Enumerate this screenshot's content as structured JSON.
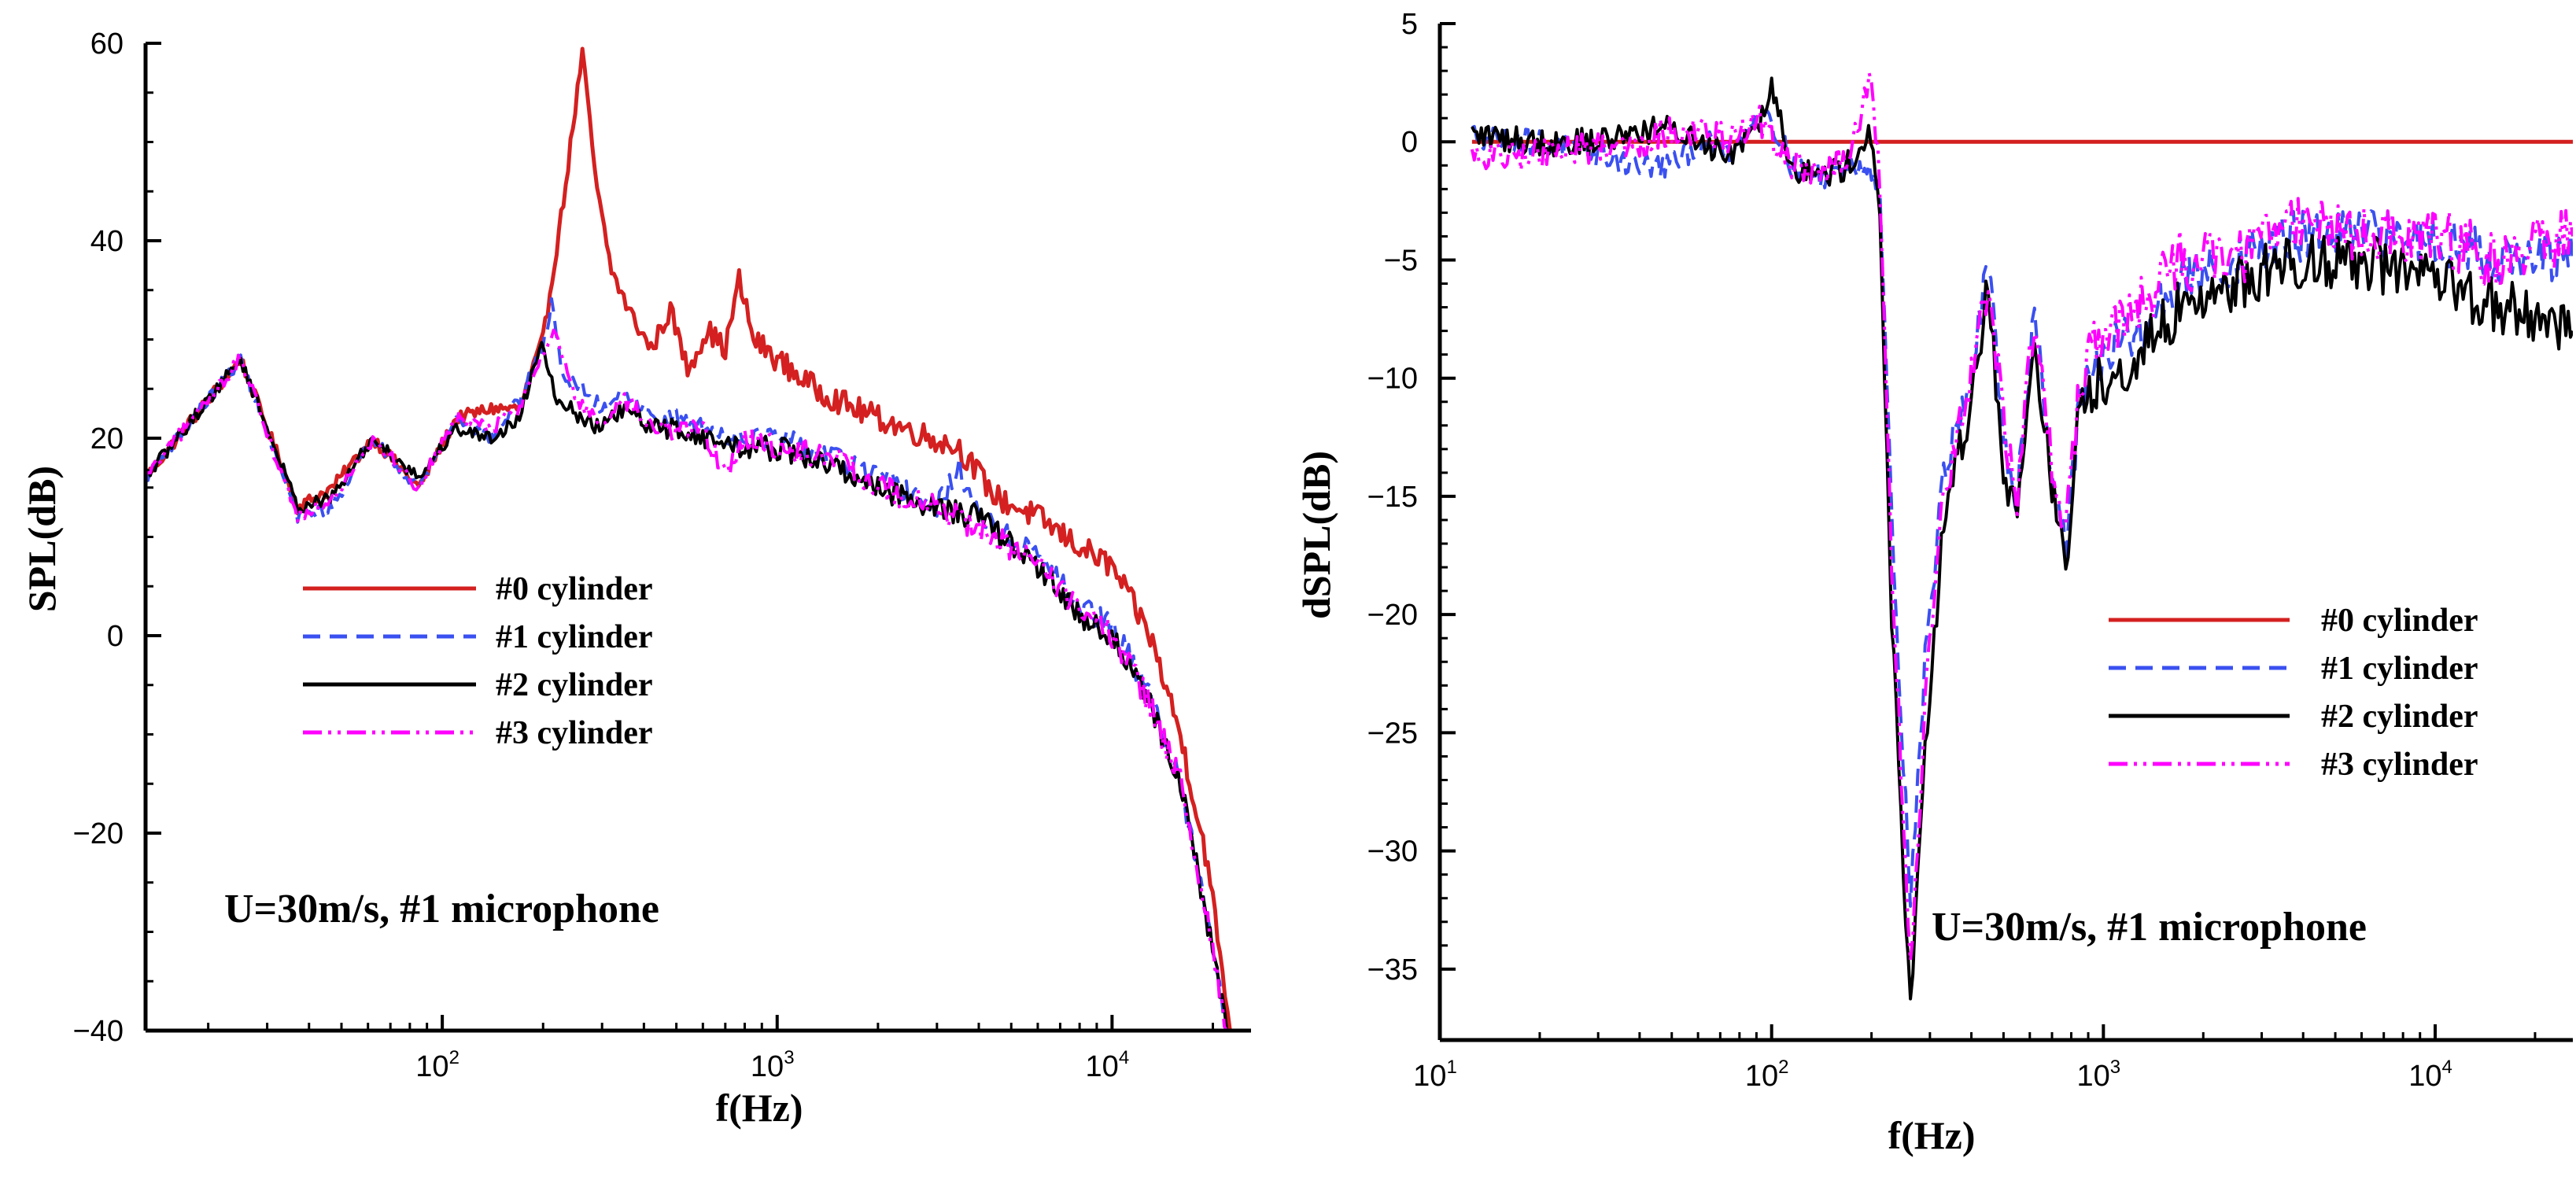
{
  "chart_data": [
    {
      "type": "line",
      "xscale": "log",
      "xlim": [
        13,
        26000
      ],
      "ylim": [
        -40,
        60
      ],
      "xlabel": "f(Hz)",
      "ylabel": "SPL(dB)",
      "yticks": [
        60,
        40,
        20,
        0,
        -20,
        -40
      ],
      "ytick_labels": [
        "60",
        "40",
        "20",
        "0",
        "−20",
        "−40"
      ],
      "xticks": [
        {
          "value": 100,
          "base": "10",
          "exp": "2"
        },
        {
          "value": 1000,
          "base": "10",
          "exp": "3"
        },
        {
          "value": 10000,
          "base": "10",
          "exp": "4"
        }
      ],
      "annotation": "U=30m/s, #1 microphone",
      "legend_position": "center-left",
      "series": [
        {
          "name": "#0 cylinder",
          "color": "#d42020",
          "dash": "solid",
          "noise": 1.3,
          "points": [
            [
              13,
              16
            ],
            [
              25,
              28
            ],
            [
              37,
              13
            ],
            [
              47,
              15
            ],
            [
              62,
              20
            ],
            [
              85,
              15
            ],
            [
              110,
              22
            ],
            [
              140,
              23
            ],
            [
              170,
              23
            ],
            [
              200,
              30
            ],
            [
              230,
              44
            ],
            [
              262,
              59
            ],
            [
              290,
              45
            ],
            [
              320,
              37
            ],
            [
              360,
              33
            ],
            [
              420,
              29
            ],
            [
              480,
              33
            ],
            [
              540,
              27
            ],
            [
              620,
              31
            ],
            [
              700,
              29
            ],
            [
              770,
              36
            ],
            [
              850,
              30
            ],
            [
              1000,
              28
            ],
            [
              1300,
              25
            ],
            [
              1700,
              23
            ],
            [
              2400,
              21
            ],
            [
              3500,
              19
            ],
            [
              4500,
              14
            ],
            [
              6000,
              12
            ],
            [
              8000,
              9
            ],
            [
              10000,
              7
            ],
            [
              13000,
              0
            ],
            [
              16000,
              -10
            ],
            [
              19000,
              -22
            ],
            [
              21000,
              -32
            ],
            [
              22500,
              -40
            ]
          ]
        },
        {
          "name": "#1 cylinder",
          "color": "#3a50f0",
          "dash": "22 12",
          "noise": 1.2,
          "points": [
            [
              13,
              16
            ],
            [
              25,
              28
            ],
            [
              37,
              12
            ],
            [
              47,
              13
            ],
            [
              62,
              20
            ],
            [
              85,
              15
            ],
            [
              110,
              22
            ],
            [
              140,
              20
            ],
            [
              170,
              24
            ],
            [
              200,
              29
            ],
            [
              212,
              34
            ],
            [
              230,
              26
            ],
            [
              262,
              25
            ],
            [
              300,
              23
            ],
            [
              350,
              25
            ],
            [
              420,
              22
            ],
            [
              500,
              22
            ],
            [
              600,
              21
            ],
            [
              800,
              20
            ],
            [
              1000,
              20
            ],
            [
              1500,
              18
            ],
            [
              2000,
              16
            ],
            [
              3000,
              13
            ],
            [
              3500,
              17
            ],
            [
              4000,
              12
            ],
            [
              6000,
              8
            ],
            [
              8000,
              3
            ],
            [
              10000,
              1
            ],
            [
              13000,
              -6
            ],
            [
              16000,
              -15
            ],
            [
              19000,
              -28
            ],
            [
              22000,
              -40
            ]
          ]
        },
        {
          "name": "#2 cylinder",
          "color": "#000000",
          "dash": "solid",
          "noise": 1.3,
          "points": [
            [
              13,
              16
            ],
            [
              25,
              28
            ],
            [
              37,
              13
            ],
            [
              47,
              14
            ],
            [
              62,
              20
            ],
            [
              85,
              16
            ],
            [
              110,
              21
            ],
            [
              140,
              20
            ],
            [
              170,
              22
            ],
            [
              198,
              30
            ],
            [
              220,
              24
            ],
            [
              262,
              22
            ],
            [
              300,
              21
            ],
            [
              350,
              23
            ],
            [
              420,
              21
            ],
            [
              500,
              21
            ],
            [
              600,
              20
            ],
            [
              800,
              19
            ],
            [
              1000,
              19
            ],
            [
              1500,
              17
            ],
            [
              2000,
              15
            ],
            [
              3000,
              13
            ],
            [
              4000,
              12
            ],
            [
              6000,
              7
            ],
            [
              8000,
              2
            ],
            [
              10000,
              0
            ],
            [
              13000,
              -7
            ],
            [
              16000,
              -15
            ],
            [
              19000,
              -28
            ],
            [
              22000,
              -40
            ]
          ]
        },
        {
          "name": "#3 cylinder",
          "color": "#ff00ff",
          "dash": "24 8 4 8 4 8",
          "noise": 1.4,
          "points": [
            [
              13,
              16
            ],
            [
              25,
              28
            ],
            [
              37,
              12
            ],
            [
              47,
              14
            ],
            [
              62,
              20
            ],
            [
              85,
              15
            ],
            [
              110,
              22
            ],
            [
              140,
              21
            ],
            [
              170,
              23
            ],
            [
              200,
              29
            ],
            [
              215,
              31
            ],
            [
              240,
              26
            ],
            [
              262,
              23
            ],
            [
              300,
              21
            ],
            [
              350,
              24
            ],
            [
              420,
              21
            ],
            [
              500,
              21
            ],
            [
              600,
              21
            ],
            [
              700,
              16
            ],
            [
              800,
              20
            ],
            [
              1000,
              19
            ],
            [
              1500,
              18
            ],
            [
              2000,
              15
            ],
            [
              3000,
              13
            ],
            [
              4000,
              11
            ],
            [
              6000,
              7
            ],
            [
              8000,
              3
            ],
            [
              10000,
              0
            ],
            [
              13000,
              -7
            ],
            [
              16000,
              -15
            ],
            [
              19000,
              -28
            ],
            [
              22000,
              -40
            ]
          ]
        }
      ]
    },
    {
      "type": "line",
      "xscale": "log",
      "xlim": [
        10,
        26000
      ],
      "ylim": [
        -38,
        5
      ],
      "xlabel": "f(Hz)",
      "ylabel": "dSPL(dB)",
      "yticks": [
        5,
        0,
        -5,
        -10,
        -15,
        -20,
        -25,
        -30,
        -35
      ],
      "ytick_labels": [
        "5",
        "0",
        "−5",
        "−10",
        "−15",
        "−20",
        "−25",
        "−30",
        "−35"
      ],
      "xticks": [
        {
          "value": 10,
          "base": "10",
          "exp": "1"
        },
        {
          "value": 100,
          "base": "10",
          "exp": "2"
        },
        {
          "value": 1000,
          "base": "10",
          "exp": "3"
        },
        {
          "value": 10000,
          "base": "10",
          "exp": "4"
        }
      ],
      "annotation": "U=30m/s, #1 microphone",
      "legend_position": "center-right",
      "series": [
        {
          "name": "#0 cylinder",
          "color": "#d42020",
          "dash": "solid",
          "noise": 0,
          "points": [
            [
              12.5,
              0
            ],
            [
              26000,
              0
            ]
          ]
        },
        {
          "name": "#1 cylinder",
          "color": "#3a50f0",
          "dash": "22 12",
          "noise": 1.1,
          "points": [
            [
              12.5,
              0.3
            ],
            [
              20,
              0
            ],
            [
              30,
              -0.5
            ],
            [
              40,
              -1
            ],
            [
              50,
              -1
            ],
            [
              62,
              0
            ],
            [
              75,
              -0.5
            ],
            [
              92,
              1.5
            ],
            [
              100,
              1
            ],
            [
              115,
              -1
            ],
            [
              140,
              -1.5
            ],
            [
              170,
              -1
            ],
            [
              200,
              -1
            ],
            [
              212,
              -2
            ],
            [
              230,
              -16
            ],
            [
              262,
              -32
            ],
            [
              290,
              -22
            ],
            [
              330,
              -14
            ],
            [
              400,
              -10
            ],
            [
              450,
              -5
            ],
            [
              500,
              -13
            ],
            [
              550,
              -15
            ],
            [
              620,
              -7
            ],
            [
              700,
              -14
            ],
            [
              770,
              -17
            ],
            [
              850,
              -11
            ],
            [
              1000,
              -9
            ],
            [
              1300,
              -8
            ],
            [
              1700,
              -6
            ],
            [
              2500,
              -5
            ],
            [
              3800,
              -4
            ],
            [
              6000,
              -4
            ],
            [
              10000,
              -4
            ],
            [
              16000,
              -5
            ],
            [
              26000,
              -5
            ]
          ]
        },
        {
          "name": "#2 cylinder",
          "color": "#000000",
          "dash": "solid",
          "noise": 1.2,
          "points": [
            [
              12.5,
              0.3
            ],
            [
              20,
              0
            ],
            [
              30,
              0
            ],
            [
              40,
              0.5
            ],
            [
              50,
              0.5
            ],
            [
              62,
              0
            ],
            [
              75,
              -0.5
            ],
            [
              92,
              1
            ],
            [
              100,
              2.5
            ],
            [
              115,
              -1
            ],
            [
              140,
              -1.5
            ],
            [
              170,
              -1
            ],
            [
              196,
              0.5
            ],
            [
              212,
              -3
            ],
            [
              230,
              -20
            ],
            [
              262,
              -37
            ],
            [
              290,
              -26
            ],
            [
              330,
              -16
            ],
            [
              400,
              -11
            ],
            [
              450,
              -6
            ],
            [
              500,
              -14
            ],
            [
              550,
              -16
            ],
            [
              620,
              -8
            ],
            [
              700,
              -15
            ],
            [
              770,
              -18
            ],
            [
              850,
              -11
            ],
            [
              1000,
              -10
            ],
            [
              1300,
              -9
            ],
            [
              1700,
              -7
            ],
            [
              2500,
              -6
            ],
            [
              3800,
              -5
            ],
            [
              6000,
              -5
            ],
            [
              10000,
              -6
            ],
            [
              16000,
              -7
            ],
            [
              26000,
              -8
            ]
          ]
        },
        {
          "name": "#3 cylinder",
          "color": "#ff00ff",
          "dash": "24 8 4 8 4 8",
          "noise": 1.3,
          "points": [
            [
              12.5,
              -0.7
            ],
            [
              20,
              -0.5
            ],
            [
              30,
              -0.2
            ],
            [
              40,
              0
            ],
            [
              50,
              0.5
            ],
            [
              62,
              0.5
            ],
            [
              75,
              0
            ],
            [
              92,
              1
            ],
            [
              100,
              0
            ],
            [
              115,
              -1
            ],
            [
              140,
              -1.2
            ],
            [
              170,
              -1
            ],
            [
              200,
              3
            ],
            [
              212,
              -2
            ],
            [
              230,
              -18
            ],
            [
              262,
              -35
            ],
            [
              290,
              -24
            ],
            [
              330,
              -15
            ],
            [
              400,
              -10
            ],
            [
              450,
              -6
            ],
            [
              500,
              -12
            ],
            [
              550,
              -15
            ],
            [
              620,
              -7
            ],
            [
              700,
              -14
            ],
            [
              770,
              -17
            ],
            [
              850,
              -10
            ],
            [
              1000,
              -8
            ],
            [
              1300,
              -7
            ],
            [
              1700,
              -5
            ],
            [
              2500,
              -5
            ],
            [
              3800,
              -3
            ],
            [
              6000,
              -4
            ],
            [
              10000,
              -4
            ],
            [
              16000,
              -5
            ],
            [
              26000,
              -4
            ]
          ]
        }
      ]
    }
  ]
}
